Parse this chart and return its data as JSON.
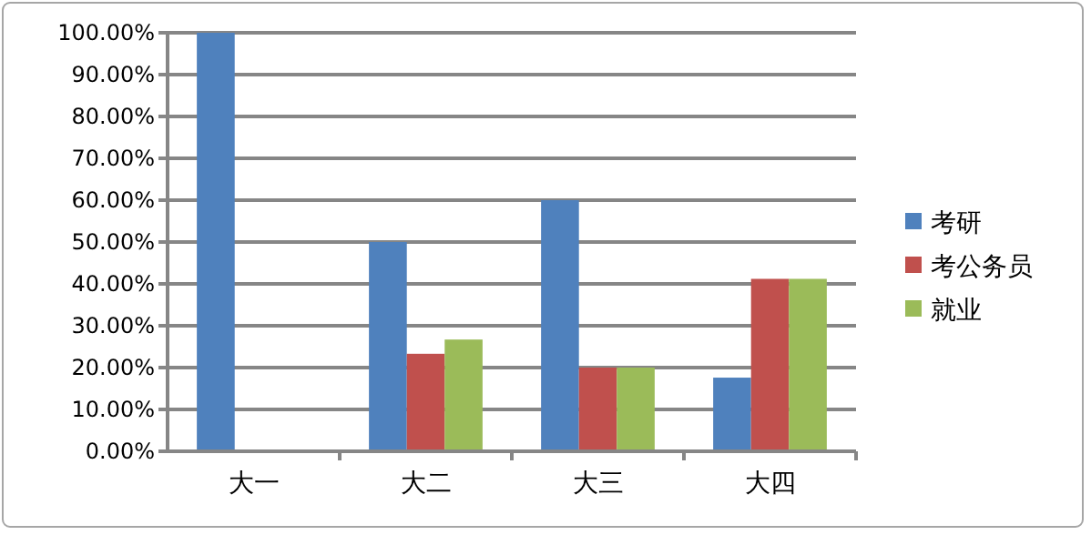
{
  "chart_data": {
    "type": "bar",
    "categories": [
      "大一",
      "大二",
      "大三",
      "大四"
    ],
    "series": [
      {
        "name": "考研",
        "color": "#4f81bd",
        "values": [
          100,
          50,
          60,
          17.6
        ]
      },
      {
        "name": "考公务员",
        "color": "#c0504d",
        "values": [
          0,
          23.3,
          20,
          41.2
        ]
      },
      {
        "name": "就业",
        "color": "#9bbb59",
        "values": [
          0,
          26.7,
          20,
          41.2
        ]
      }
    ],
    "ylim": [
      0,
      100
    ],
    "yticks": [
      {
        "value": 0,
        "label": "0.00%"
      },
      {
        "value": 10,
        "label": "10.00%"
      },
      {
        "value": 20,
        "label": "20.00%"
      },
      {
        "value": 30,
        "label": "30.00%"
      },
      {
        "value": 40,
        "label": "40.00%"
      },
      {
        "value": 50,
        "label": "50.00%"
      },
      {
        "value": 60,
        "label": "60.00%"
      },
      {
        "value": 70,
        "label": "70.00%"
      },
      {
        "value": 80,
        "label": "80.00%"
      },
      {
        "value": 90,
        "label": "90.00%"
      },
      {
        "value": 100,
        "label": "100.00%"
      }
    ],
    "grid": "y",
    "legend": "right"
  }
}
